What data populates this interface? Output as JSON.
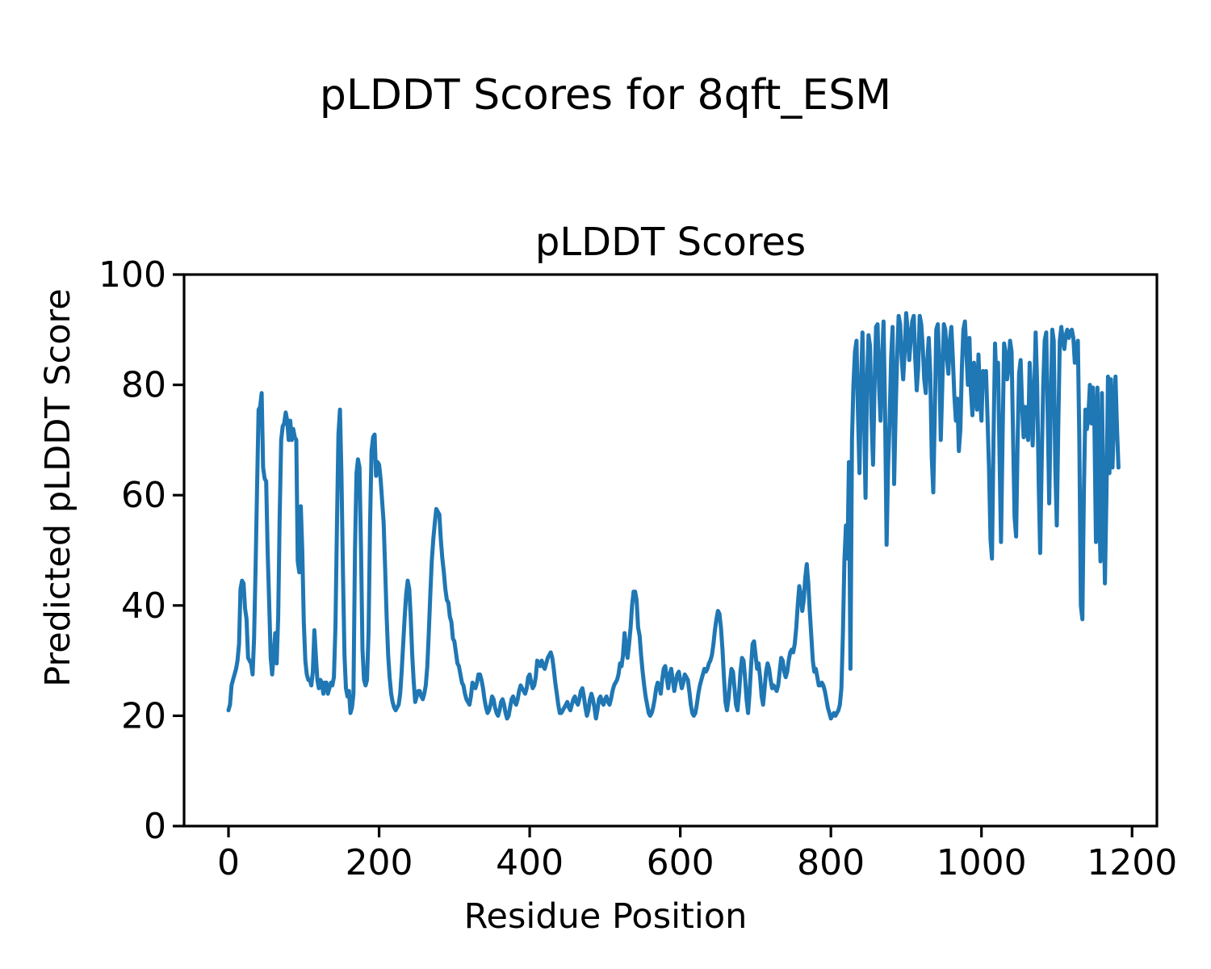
{
  "figure": {
    "title": "pLDDT Scores for 8qft_ESM",
    "background": "#ffffff"
  },
  "chart_data": {
    "type": "line",
    "title": "pLDDT Scores",
    "xlabel": "Residue Position",
    "ylabel": "Predicted pLDDT Score",
    "xlim": [
      -59,
      1233
    ],
    "ylim": [
      0,
      100
    ],
    "x_ticks": [
      0,
      200,
      400,
      600,
      800,
      1000,
      1200
    ],
    "y_ticks": [
      0,
      20,
      40,
      60,
      80,
      100
    ],
    "grid": false,
    "legend": "none",
    "axis_color": "#000000",
    "series": [
      {
        "name": "pLDDT",
        "color": "#1f77b4",
        "x_start": 0,
        "x_step": 2,
        "values": [
          21,
          22,
          25.5,
          26.5,
          27.5,
          28.5,
          30,
          33,
          43,
          44.5,
          44,
          39.5,
          37.5,
          30.5,
          30,
          29.5,
          27.5,
          34,
          47,
          62,
          75.5,
          76,
          78.5,
          65,
          63,
          62.5,
          50,
          40.5,
          30.5,
          27.5,
          31,
          35,
          29.5,
          38,
          56,
          70,
          72.5,
          73,
          75,
          73.5,
          70,
          73.5,
          70,
          72,
          70.5,
          70,
          48,
          46,
          58,
          50,
          37,
          30,
          27.5,
          26.5,
          26.5,
          25.5,
          28,
          35.5,
          31,
          26.5,
          25,
          26.5,
          26,
          24,
          26,
          26,
          24,
          25,
          26,
          25.5,
          27,
          36,
          54,
          71,
          75.5,
          64,
          46,
          31,
          25,
          23.5,
          24.5,
          20.5,
          21.5,
          24,
          50,
          64,
          66.5,
          65,
          50,
          32,
          26.5,
          25.5,
          26.5,
          35,
          55,
          68,
          70.5,
          71,
          63.5,
          66,
          65.5,
          63,
          59,
          55,
          47,
          38,
          31,
          27,
          24,
          22.5,
          21.5,
          21,
          21.5,
          22,
          24,
          28,
          33,
          38,
          42,
          44.5,
          43,
          38,
          31,
          26,
          22.5,
          23.5,
          24.5,
          24.5,
          23.5,
          23,
          24,
          25.5,
          29,
          35,
          42,
          48,
          52,
          55,
          57.5,
          57,
          56.5,
          52,
          48.5,
          46,
          43,
          41,
          40.5,
          38,
          37,
          34,
          33.5,
          31.5,
          29.5,
          29,
          27.5,
          26,
          25.5,
          24,
          23,
          22.5,
          22,
          23.5,
          26,
          25.5,
          25,
          26,
          27.5,
          27.5,
          26.5,
          25,
          23,
          21.5,
          20.5,
          21,
          22,
          23.5,
          23,
          21.5,
          20.5,
          20,
          21,
          22.5,
          23,
          22,
          20.5,
          19.5,
          20,
          21.5,
          23,
          23.5,
          22.5,
          22,
          23,
          24.5,
          25.5,
          25,
          24.5,
          24,
          25,
          27,
          27.5,
          26,
          25,
          25.5,
          27,
          30,
          29.5,
          29,
          30,
          29,
          28.5,
          29.5,
          30.5,
          31,
          31.5,
          30.5,
          28.5,
          26,
          24,
          22,
          20.5,
          20.5,
          21,
          21.5,
          22,
          22.5,
          21.5,
          21,
          22,
          23,
          23.5,
          22.5,
          22,
          23,
          24.5,
          25,
          23.5,
          21.5,
          20,
          21,
          23,
          24,
          23,
          21.5,
          19.5,
          21,
          23,
          23.5,
          22.5,
          22,
          23,
          23.5,
          22.5,
          22,
          23,
          24.5,
          25.5,
          26,
          26.5,
          27.5,
          29.5,
          29,
          31,
          35,
          32.5,
          30.5,
          33,
          36,
          40,
          42.5,
          42.5,
          41,
          36,
          34.5,
          31,
          28,
          25.5,
          23.5,
          22,
          20.5,
          20,
          20.5,
          21.5,
          23,
          25,
          26,
          25.5,
          24,
          26.5,
          28.5,
          29,
          27,
          25,
          27.5,
          28.5,
          26.5,
          24.5,
          26,
          27.5,
          28,
          26.5,
          25,
          26,
          27.5,
          27,
          26.5,
          24.5,
          22,
          20.5,
          20,
          20.5,
          22,
          24,
          25.5,
          26.5,
          27.5,
          28.5,
          28,
          28.5,
          29.5,
          30,
          31,
          33,
          35.5,
          37.5,
          39,
          38.5,
          36,
          32,
          27,
          22.5,
          21,
          23,
          26,
          28.5,
          28,
          25,
          22,
          21,
          24,
          28,
          30.5,
          30,
          27,
          23,
          20.5,
          24,
          29,
          33,
          33.5,
          31,
          28.5,
          29.5,
          27,
          23.5,
          22,
          25,
          28,
          29.5,
          28.5,
          26.5,
          25,
          25.5,
          25,
          24.5,
          25.5,
          28,
          30.5,
          30,
          28,
          27,
          28,
          30,
          31.5,
          32,
          31.5,
          33,
          36,
          40,
          43.5,
          42,
          39,
          41,
          45,
          47.5,
          44,
          39,
          34.5,
          30,
          28,
          28.5,
          27,
          25.5,
          25.5,
          26,
          25.5,
          24.5,
          23,
          21.5,
          20.5,
          19.5,
          20,
          20.5,
          20,
          20.5,
          21,
          22,
          25,
          35,
          48,
          54.5,
          48.5,
          66,
          28.5,
          70,
          80,
          86,
          88,
          75,
          64,
          80,
          89.5,
          75,
          59.5,
          80,
          89,
          87,
          74,
          65.5,
          80,
          90.5,
          91,
          80,
          73.5,
          85,
          91.5,
          75,
          51,
          65,
          73.5,
          85,
          90.5,
          62,
          75,
          85,
          92.5,
          91,
          85,
          81,
          86,
          93,
          90,
          84.5,
          88,
          91.5,
          92.5,
          85,
          79,
          83,
          92.5,
          91,
          87,
          81,
          78.5,
          84,
          88.5,
          82,
          67,
          60.5,
          75,
          90,
          91,
          84,
          70,
          80,
          91,
          90,
          85,
          82,
          88,
          90.5,
          85,
          78,
          73.5,
          77.5,
          68,
          72,
          83,
          90,
          91.5,
          86,
          80,
          88.5,
          79,
          74.5,
          84,
          79,
          75.5,
          85.5,
          78,
          73.5,
          82.5,
          80,
          82.5,
          74,
          65,
          52,
          48.5,
          70,
          87.5,
          80,
          84,
          67,
          51.5,
          70,
          87.5,
          86,
          81,
          83,
          88,
          86,
          70,
          56,
          52.5,
          70,
          82,
          84.5,
          76,
          70.5,
          76,
          72,
          70,
          84,
          78,
          69,
          78,
          89.5,
          80,
          62,
          49.5,
          66,
          80,
          88,
          89.5,
          74,
          58.5,
          76,
          90,
          88,
          65,
          54.5,
          72,
          88,
          90.5,
          88,
          86.5,
          89,
          90,
          88.5,
          89.5,
          90,
          88.5,
          84,
          86,
          88,
          70,
          40,
          37.5,
          60,
          75.5,
          72,
          74.5,
          80,
          73,
          79.5,
          72.5,
          51.5,
          79.5,
          60,
          48,
          78.5,
          60,
          44,
          60,
          81.5,
          64,
          81,
          65,
          74,
          81.5,
          72,
          65
        ]
      }
    ]
  }
}
